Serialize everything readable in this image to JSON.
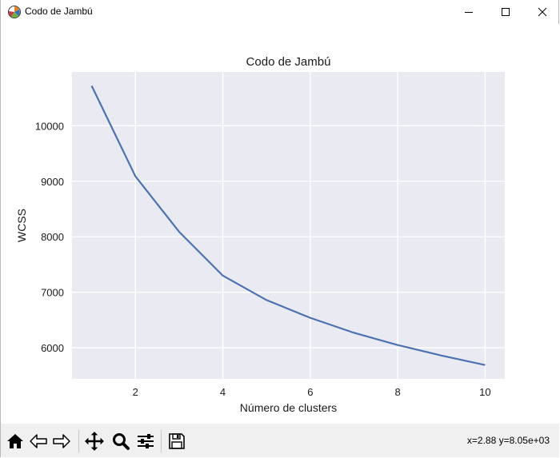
{
  "window": {
    "title": "Codo de Jambú",
    "icon": "matplotlib-icon",
    "controls": [
      "minimize-icon",
      "maximize-icon",
      "close-icon"
    ]
  },
  "toolbar": {
    "buttons": [
      "home-icon",
      "back-icon",
      "forward-icon",
      "pan-icon",
      "zoom-icon",
      "configure-subplots-icon",
      "save-icon"
    ],
    "coordinates": "x=2.88 y=8.05e+03"
  },
  "chart_data": {
    "type": "line",
    "title": "Codo de Jambú",
    "xlabel": "Número de clusters",
    "ylabel": "WCSS",
    "x": [
      1,
      2,
      3,
      4,
      5,
      6,
      7,
      8,
      9,
      10
    ],
    "series": [
      {
        "values": [
          10720,
          9090,
          8090,
          7300,
          6860,
          6540,
          6270,
          6050,
          5860,
          5690
        ]
      }
    ],
    "xlim": [
      0.55,
      10.45
    ],
    "ylim": [
      5440,
      10970
    ],
    "xticks": [
      2,
      4,
      6,
      8,
      10
    ],
    "yticks": [
      6000,
      7000,
      8000,
      9000,
      10000
    ],
    "grid": true,
    "style": "seaborn",
    "colors": {
      "line": "#4c72b0",
      "plot_bg": "#eaeaf2",
      "grid": "#ffffff"
    }
  }
}
